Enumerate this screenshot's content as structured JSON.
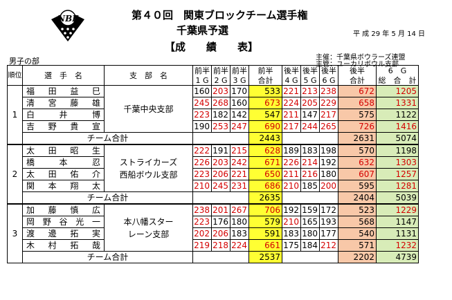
{
  "header": {
    "title": "第４０回　関東ブロックチーム選手権",
    "subtitle": "千葉県予選",
    "section": "【成　　績　　表】",
    "date": "平 成 29 年 5 月 14 日",
    "organizer": "主催：千葉県ボウラーズ連盟",
    "manager": "主管：ユーカリボウル支部",
    "division": "男子の部",
    "logo_text": "NBF"
  },
  "columns": {
    "rank": "順位",
    "player": "選　手　名",
    "branch": "支　部　名",
    "g1": "1 G",
    "g2": "2 G",
    "g3": "3 G",
    "first_half_top": "前半",
    "first_half_total": "合計",
    "g4": "4 G",
    "g5": "5 G",
    "g6": "6 G",
    "second_half_top": "後半",
    "second_half_total": "合計",
    "total_top": "6　G",
    "total": "総　合　計"
  },
  "team_total_label": "チーム合計",
  "teams": [
    {
      "rank": "1",
      "branch_lines": [
        "千葉中央支部",
        ""
      ],
      "players": [
        {
          "name": "福田益巳",
          "g1": "160",
          "g2": "203",
          "g3": "170",
          "first": "533",
          "g4": "221",
          "g5": "213",
          "g6": "238",
          "second": "672",
          "total": "1205"
        },
        {
          "name": "清宮藤雄",
          "g1": "245",
          "g2": "268",
          "g3": "160",
          "first": "673",
          "g4": "224",
          "g5": "205",
          "g6": "229",
          "second": "658",
          "total": "1331"
        },
        {
          "name": "白井博",
          "g1": "223",
          "g2": "182",
          "g3": "142",
          "first": "547",
          "g4": "211",
          "g5": "147",
          "g6": "217",
          "second": "575",
          "total": "1122"
        },
        {
          "name": "吉野貴宣",
          "g1": "190",
          "g2": "253",
          "g3": "247",
          "first": "690",
          "g4": "217",
          "g5": "244",
          "g6": "265",
          "second": "726",
          "total": "1416"
        }
      ],
      "team_first": "2443",
      "team_second": "2631",
      "team_total": "5074"
    },
    {
      "rank": "2",
      "branch_lines": [
        "ストライカーズ",
        "西船ボウル支部"
      ],
      "players": [
        {
          "name": "太田昭生",
          "g1": "222",
          "g2": "191",
          "g3": "215",
          "first": "628",
          "g4": "189",
          "g5": "183",
          "g6": "198",
          "second": "570",
          "total": "1198"
        },
        {
          "name": "橋本忍",
          "g1": "226",
          "g2": "203",
          "g3": "242",
          "first": "671",
          "g4": "226",
          "g5": "214",
          "g6": "192",
          "second": "632",
          "total": "1303"
        },
        {
          "name": "太田佑介",
          "g1": "223",
          "g2": "206",
          "g3": "221",
          "first": "650",
          "g4": "211",
          "g5": "216",
          "g6": "180",
          "second": "607",
          "total": "1257"
        },
        {
          "name": "関本翔太",
          "g1": "210",
          "g2": "245",
          "g3": "231",
          "first": "686",
          "g4": "210",
          "g5": "185",
          "g6": "200",
          "second": "595",
          "total": "1281"
        }
      ],
      "team_first": "2635",
      "team_second": "2404",
      "team_total": "5039"
    },
    {
      "rank": "3",
      "branch_lines": [
        "本八幡スター",
        "レーン支部"
      ],
      "players": [
        {
          "name": "加藤慎広",
          "g1": "238",
          "g2": "201",
          "g3": "267",
          "first": "706",
          "g4": "192",
          "g5": "159",
          "g6": "172",
          "second": "523",
          "total": "1229"
        },
        {
          "name": "岡野谷光一",
          "g1": "223",
          "g2": "176",
          "g3": "180",
          "first": "579",
          "g4": "210",
          "g5": "165",
          "g6": "193",
          "second": "568",
          "total": "1147"
        },
        {
          "name": "渡邊拓実",
          "g1": "202",
          "g2": "206",
          "g3": "183",
          "first": "591",
          "g4": "183",
          "g5": "180",
          "g6": "177",
          "second": "540",
          "total": "1131"
        },
        {
          "name": "木村拓哉",
          "g1": "219",
          "g2": "218",
          "g3": "224",
          "first": "661",
          "g4": "175",
          "g5": "184",
          "g6": "212",
          "second": "571",
          "total": "1232"
        }
      ],
      "team_first": "2537",
      "team_second": "2202",
      "team_total": "4739"
    }
  ],
  "colors": {
    "highlight_red": "#d40000",
    "first_half_fill": "#ffff33",
    "second_half_fill": "#f8c8a8",
    "total_fill": "#d8ecb8"
  }
}
